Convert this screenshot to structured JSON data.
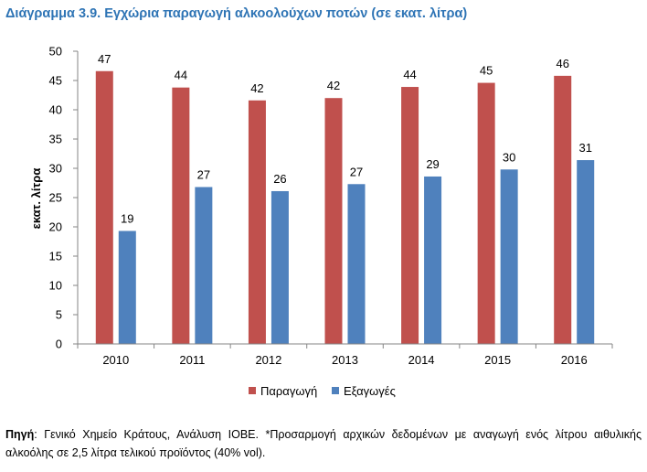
{
  "title": "Διάγραμμα 3.9. Εγχώρια παραγωγή αλκοολούχων ποτών (σε εκατ. λίτρα)",
  "source": {
    "label": "Πηγή",
    "text": ": Γενικό Χημείο Κράτους, Ανάλυση ΙΟΒΕ. *Προσαρμογή αρχικών δεδομένων με αναγωγή ενός λίτρου αιθυλικής αλκοόλης σε 2,5 λίτρα τελικού προϊόντος (40% vol)."
  },
  "chart_data": {
    "type": "bar",
    "categories": [
      "2010",
      "2011",
      "2012",
      "2013",
      "2014",
      "2015",
      "2016"
    ],
    "series": [
      {
        "name": "Παραγωγή",
        "color": "#c0504d",
        "values": [
          46.6,
          43.8,
          41.6,
          42.0,
          43.9,
          44.6,
          45.8
        ],
        "labels": [
          "47",
          "44",
          "42",
          "42",
          "44",
          "45",
          "46"
        ]
      },
      {
        "name": "Εξαγωγές",
        "color": "#4f81bd",
        "values": [
          19.3,
          26.8,
          26.1,
          27.3,
          28.6,
          29.8,
          31.4
        ],
        "labels": [
          "19",
          "27",
          "26",
          "27",
          "29",
          "30",
          "31"
        ]
      }
    ],
    "ylabel": "εκατ. λίτρα",
    "xlabel": "",
    "ylim": [
      0,
      50
    ],
    "yticks": [
      0,
      5,
      10,
      15,
      20,
      25,
      30,
      35,
      40,
      45,
      50
    ],
    "grid": false,
    "legend": "bottom"
  }
}
